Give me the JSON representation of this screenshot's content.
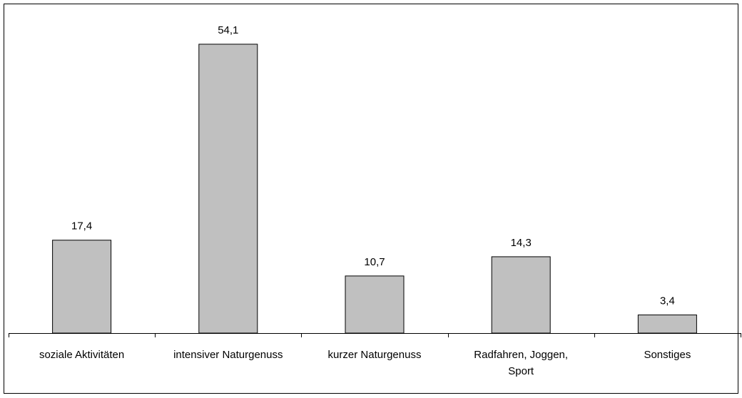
{
  "chart_data": {
    "type": "bar",
    "categories": [
      "soziale Aktivitäten",
      "intensiver Naturgenuss",
      "kurzer Naturgenuss",
      "Radfahren, Joggen, Sport",
      "Sonstiges"
    ],
    "values": [
      17.4,
      54.1,
      10.7,
      14.3,
      3.4
    ],
    "value_labels": [
      "17,4",
      "54,1",
      "10,7",
      "14,3",
      "3,4"
    ],
    "color": "#c0c0c0",
    "ylim": [
      0,
      60
    ]
  }
}
